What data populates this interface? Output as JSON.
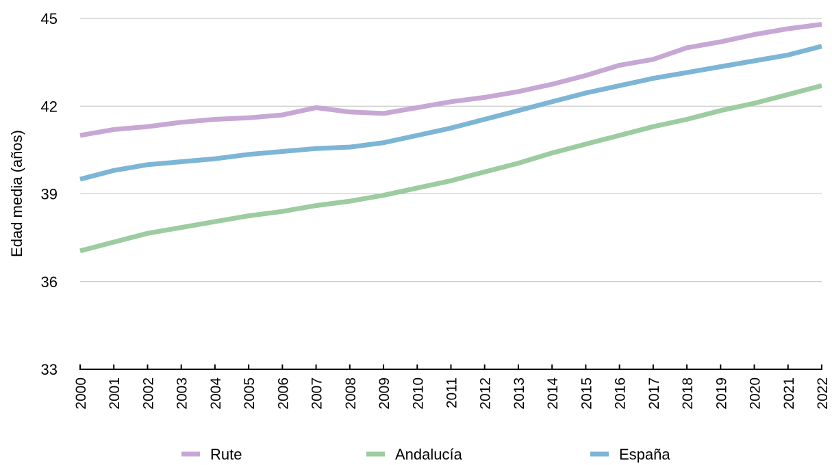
{
  "chart_data": {
    "type": "line",
    "ylabel": "Edad media (años)",
    "ylim": [
      33,
      45
    ],
    "yticks": [
      33,
      36,
      39,
      42,
      45
    ],
    "grid": true,
    "legend_position": "bottom",
    "x": [
      "2000",
      "2001",
      "2002",
      "2003",
      "2004",
      "2005",
      "2006",
      "2007",
      "2008",
      "2009",
      "2010",
      "2011",
      "2012",
      "2013",
      "2014",
      "2015",
      "2016",
      "2017",
      "2018",
      "2019",
      "2020",
      "2021",
      "2022"
    ],
    "series": [
      {
        "name": "Rute",
        "color": "#c7a8d4",
        "values": [
          41.0,
          41.2,
          41.3,
          41.45,
          41.55,
          41.6,
          41.7,
          41.95,
          41.8,
          41.75,
          41.95,
          42.15,
          42.3,
          42.5,
          42.75,
          43.05,
          43.4,
          43.6,
          44.0,
          44.2,
          44.45,
          44.65,
          44.8
        ]
      },
      {
        "name": "Andalucía",
        "color": "#9ccca0",
        "values": [
          37.05,
          37.35,
          37.65,
          37.85,
          38.05,
          38.25,
          38.4,
          38.6,
          38.75,
          38.95,
          39.2,
          39.45,
          39.75,
          40.05,
          40.4,
          40.7,
          41.0,
          41.3,
          41.55,
          41.85,
          42.1,
          42.4,
          42.7
        ]
      },
      {
        "name": "España",
        "color": "#7db5d6",
        "values": [
          39.5,
          39.8,
          40.0,
          40.1,
          40.2,
          40.35,
          40.45,
          40.55,
          40.6,
          40.75,
          41.0,
          41.25,
          41.55,
          41.85,
          42.15,
          42.45,
          42.7,
          42.95,
          43.15,
          43.35,
          43.55,
          43.75,
          44.05
        ]
      }
    ]
  }
}
